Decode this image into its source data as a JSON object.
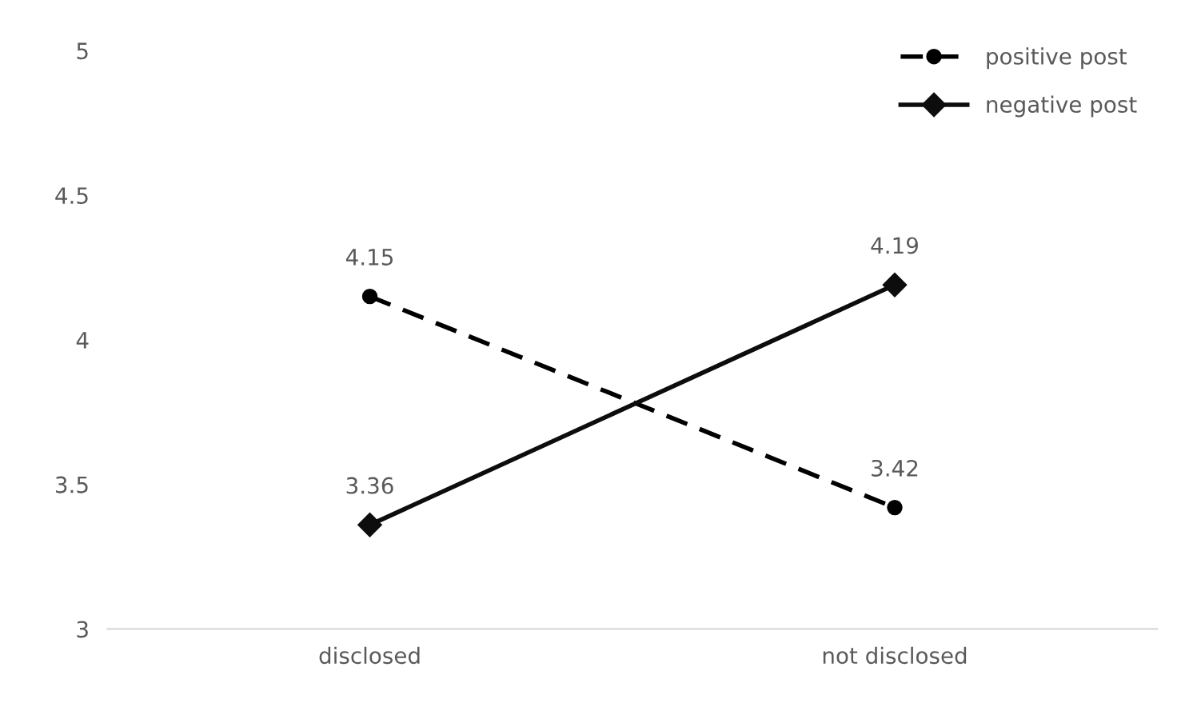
{
  "chart_data": {
    "type": "line",
    "categories": [
      "disclosed",
      "not disclosed"
    ],
    "series": [
      {
        "name": "positive post",
        "color": "#000000",
        "values": [
          4.15,
          3.42
        ],
        "line_style": "dashed",
        "marker": "circle"
      },
      {
        "name": "negative post",
        "color": "#0d0d0d",
        "values": [
          3.36,
          4.19
        ],
        "line_style": "solid",
        "marker": "diamond"
      }
    ],
    "ylim": [
      3,
      5
    ],
    "yticks": [
      3,
      3.5,
      4,
      4.5,
      5
    ],
    "grid": false,
    "legend": "top right",
    "data_labels": true
  }
}
